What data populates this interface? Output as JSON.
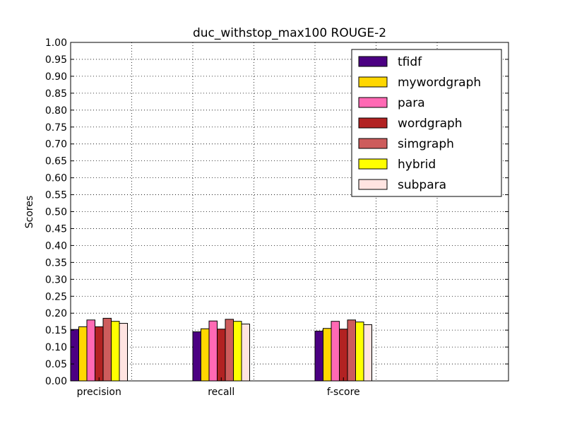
{
  "chart_data": {
    "type": "bar",
    "title": "duc_withstop_max100 ROUGE-2",
    "xlabel": "",
    "ylabel": "Scores",
    "ylim": [
      0,
      1.0
    ],
    "yticks": [
      "0.00",
      "0.05",
      "0.10",
      "0.15",
      "0.20",
      "0.25",
      "0.30",
      "0.35",
      "0.40",
      "0.45",
      "0.50",
      "0.55",
      "0.60",
      "0.65",
      "0.70",
      "0.75",
      "0.80",
      "0.85",
      "0.90",
      "0.95",
      "1.00"
    ],
    "categories": [
      "precision",
      "recall",
      "f-score"
    ],
    "grid": true,
    "legend_position": "top-right",
    "series": [
      {
        "name": "tfidf",
        "color": "#4b0082",
        "values": [
          0.152,
          0.145,
          0.147
        ]
      },
      {
        "name": "mywordgraph",
        "color": "#ffd700",
        "values": [
          0.16,
          0.154,
          0.155
        ]
      },
      {
        "name": "para",
        "color": "#ff69b4",
        "values": [
          0.18,
          0.177,
          0.176
        ]
      },
      {
        "name": "wordgraph",
        "color": "#b22222",
        "values": [
          0.16,
          0.153,
          0.153
        ]
      },
      {
        "name": "simgraph",
        "color": "#cd5c5c",
        "values": [
          0.185,
          0.182,
          0.18
        ]
      },
      {
        "name": "hybrid",
        "color": "#ffff00",
        "values": [
          0.176,
          0.176,
          0.174
        ]
      },
      {
        "name": "subpara",
        "color": "#ffe4e1",
        "values": [
          0.17,
          0.168,
          0.166
        ]
      }
    ]
  }
}
